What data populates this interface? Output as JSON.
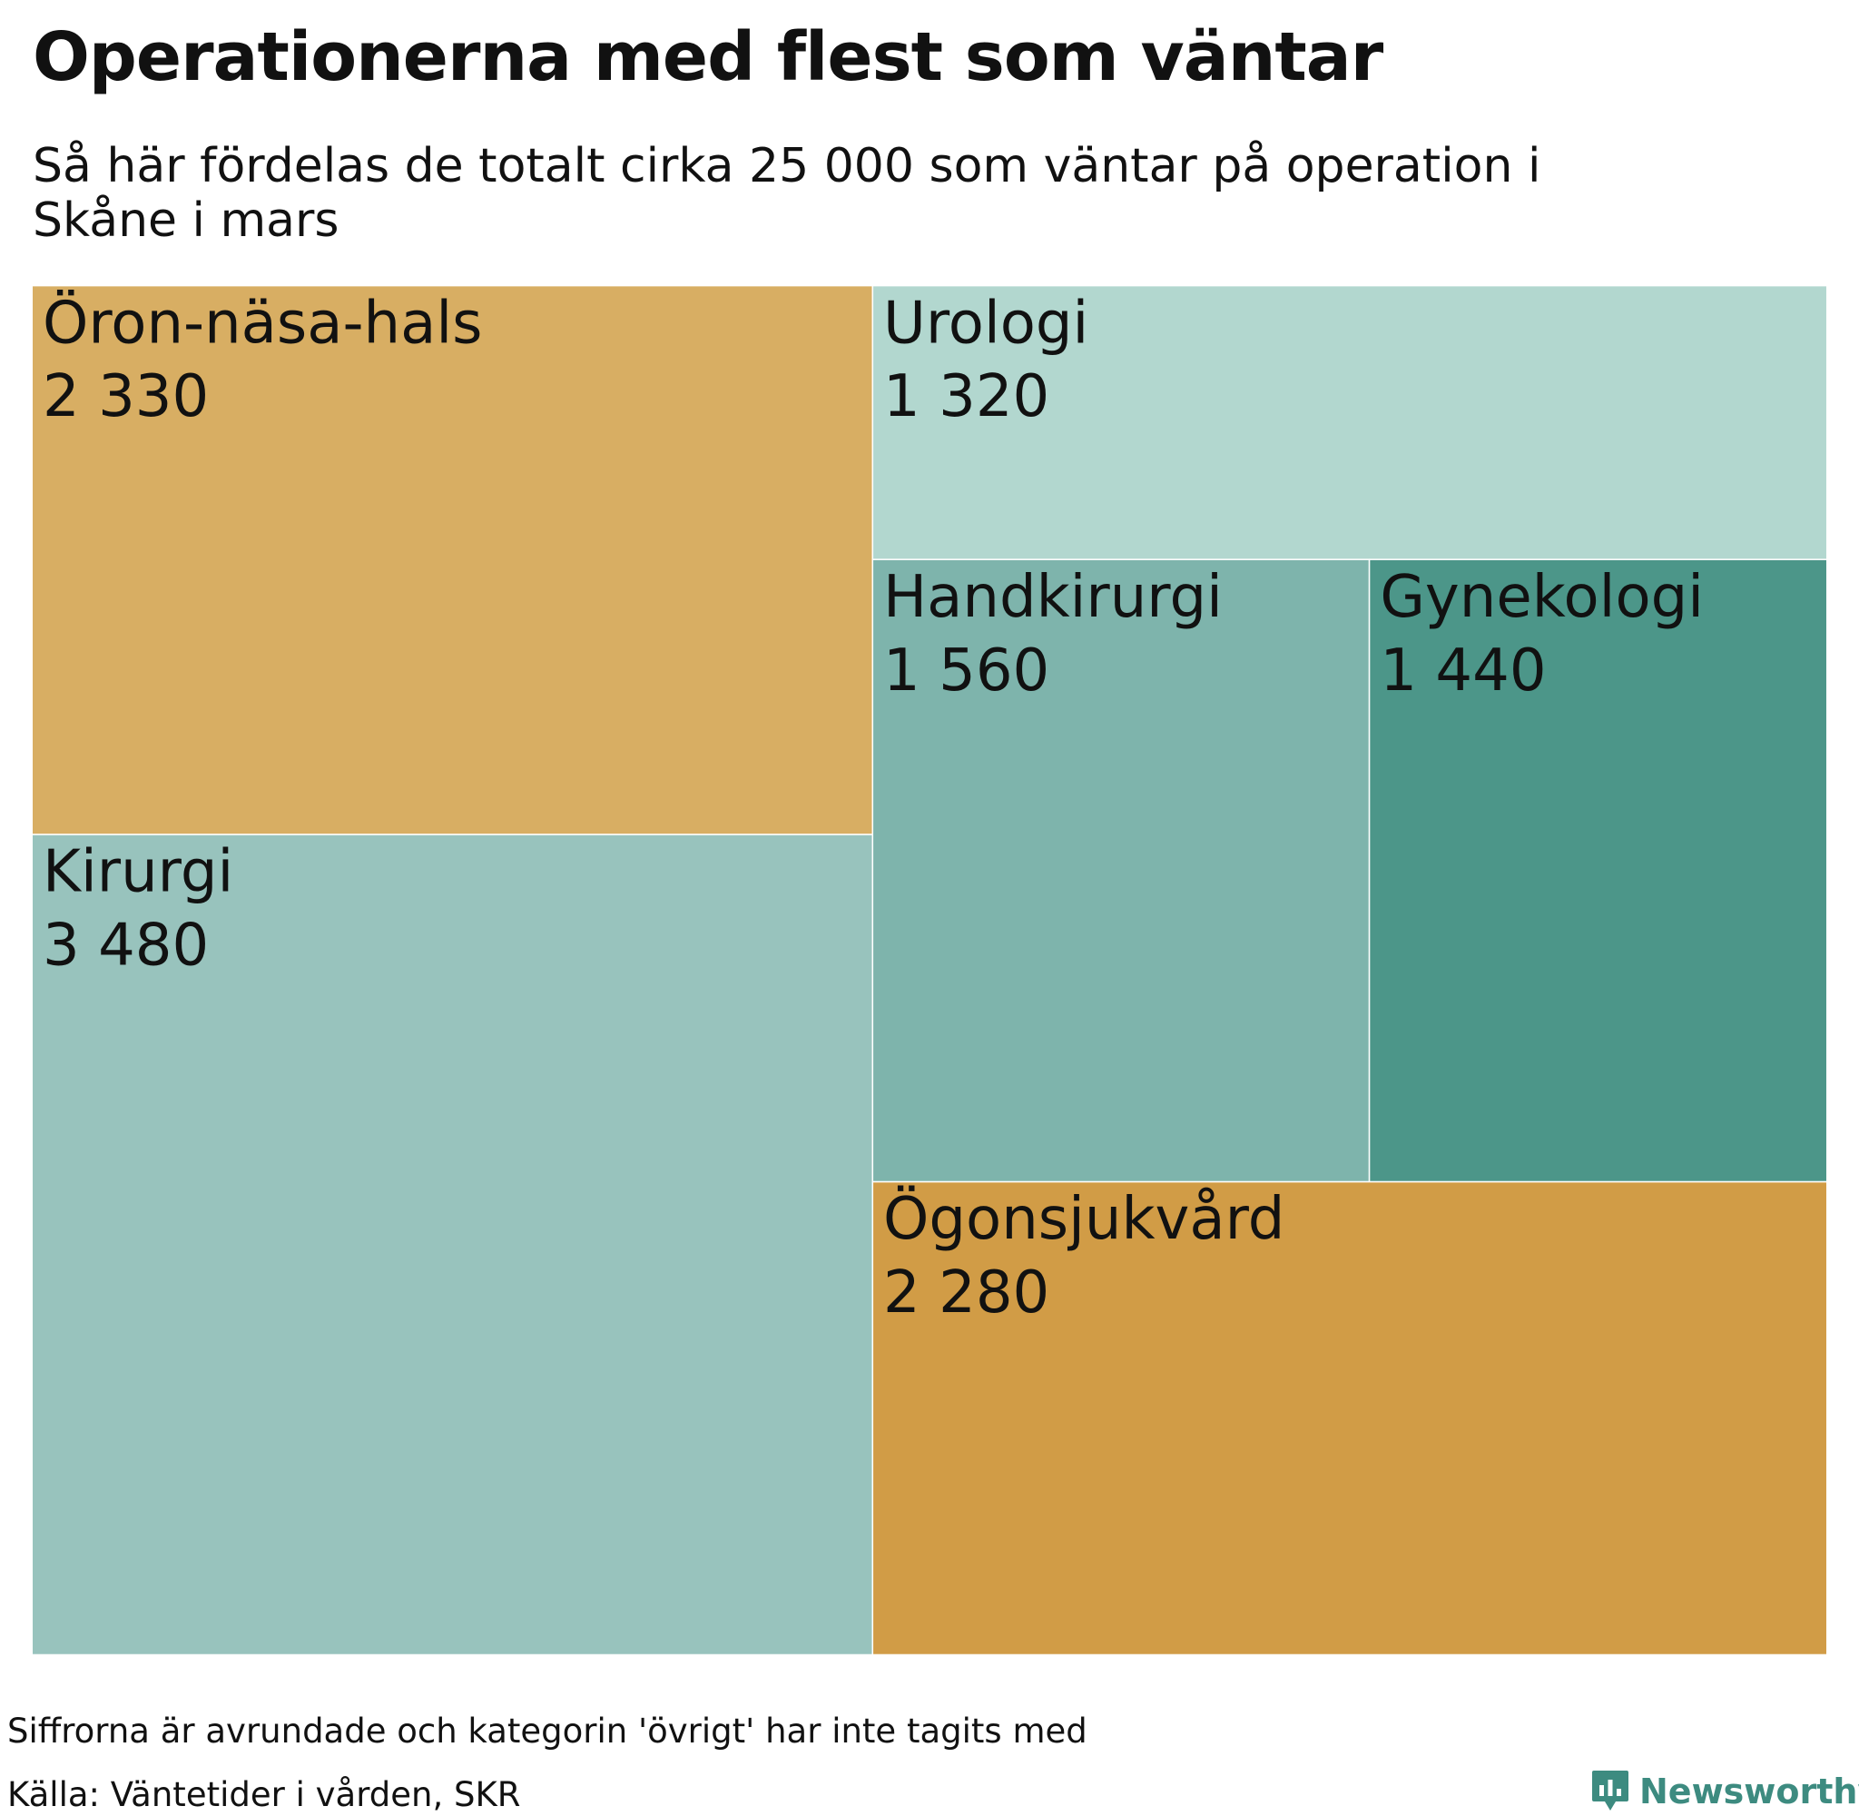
{
  "chart_data": {
    "type": "treemap",
    "title": "Operationerna med flest som väntar",
    "subtitle": "Så här fördelas de totalt cirka 25 000 som väntar på operation i Skåne i mars",
    "items": [
      {
        "label": "Öron-näsa-hals",
        "value": 2330,
        "value_text": "2 330",
        "color": "#d8ae63"
      },
      {
        "label": "Kirurgi",
        "value": 3480,
        "value_text": "3 480",
        "color": "#98c3bd"
      },
      {
        "label": "Urologi",
        "value": 1320,
        "value_text": "1 320",
        "color": "#b2d7cf"
      },
      {
        "label": "Handkirurgi",
        "value": 1560,
        "value_text": "1 560",
        "color": "#7eb4ac"
      },
      {
        "label": "Gynekologi",
        "value": 1440,
        "value_text": "1 440",
        "color": "#4c9689"
      },
      {
        "label": "Ögonsjukvård",
        "value": 2280,
        "value_text": "2 280",
        "color": "#d19c46"
      }
    ]
  },
  "footnote": "Siffrorna är avrundade och kategorin 'övrigt' har inte tagits med",
  "source": "Källa: Väntetider i vården, SKR",
  "brand": {
    "name": "Newsworthy",
    "icon": "newsworthy-logo-icon",
    "color": "#3d8b80"
  }
}
